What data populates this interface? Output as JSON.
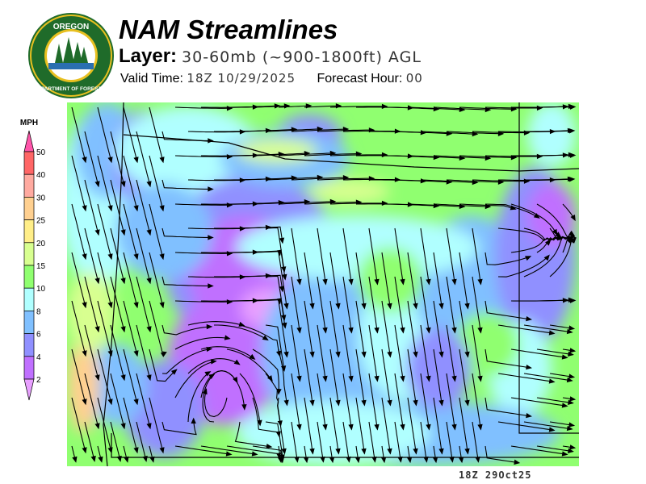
{
  "logo": {
    "top_text": "OREGON",
    "bottom_text": "DEPARTMENT OF FORESTRY"
  },
  "header": {
    "title": "NAM Streamlines",
    "layer_label": "Layer:",
    "layer_value": "30-60mb (~900-1800ft) AGL",
    "valid_label": "Valid Time:",
    "valid_value": "18Z 10/29/2025",
    "forecast_label": "Forecast Hour:",
    "forecast_value": "00"
  },
  "legend": {
    "unit": "MPH",
    "ticks": [
      "50",
      "40",
      "30",
      "25",
      "20",
      "15",
      "10",
      "8",
      "6",
      "4",
      "2"
    ],
    "colors": [
      "#ff6666",
      "#ffaaa0",
      "#ffd090",
      "#ffee88",
      "#d8ff90",
      "#90ff70",
      "#b0ffff",
      "#80c0ff",
      "#9090ff",
      "#c070ff"
    ],
    "over_color": "#ff55aa",
    "under_color": "#e8a0ff"
  },
  "footer": {
    "stamp": "18Z 29Oct25"
  }
}
